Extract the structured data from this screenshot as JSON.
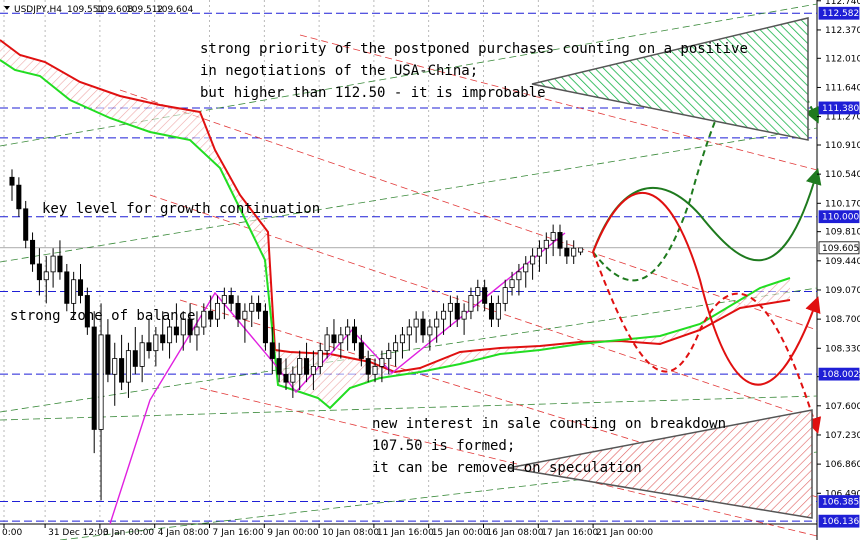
{
  "chart_data": {
    "type": "candlestick",
    "symbol": "USDJPY,H4",
    "ohlc_readout": [
      "109.551",
      "109.608",
      "109.512",
      "109.604"
    ],
    "ylim": [
      106.1,
      112.75
    ],
    "price_ticks": [
      112.74,
      112.37,
      112.01,
      111.64,
      111.27,
      110.91,
      110.54,
      110.17,
      109.81,
      109.44,
      109.07,
      108.7,
      108.33,
      107.97,
      107.6,
      107.23,
      106.86,
      106.49
    ],
    "price_tick_labels": [
      "112.740",
      "112.370",
      "112.010",
      "111.640",
      "111.270",
      "110.910",
      "110.540",
      "110.170",
      "109.810",
      "109.440",
      "109.070",
      "108.700",
      "108.330",
      "107.970",
      "107.600",
      "107.230",
      "106.860",
      "106.490"
    ],
    "time_labels": [
      {
        "label": "0:00",
        "bar": 0
      },
      {
        "label": "31 Dec 12:00",
        "bar": 6
      },
      {
        "label": "3 Jan 00:00",
        "bar": 14
      },
      {
        "label": "4 Jan 08:00",
        "bar": 22
      },
      {
        "label": "7 Jan 16:00",
        "bar": 30
      },
      {
        "label": "9 Jan 00:00",
        "bar": 38
      },
      {
        "label": "10 Jan 08:00",
        "bar": 46
      },
      {
        "label": "11 Jan 16:00",
        "bar": 54
      },
      {
        "label": "15 Jan 00:00",
        "bar": 62
      },
      {
        "label": "16 Jan 08:00",
        "bar": 70
      },
      {
        "label": "17 Jan 16:00",
        "bar": 78
      },
      {
        "label": "21 Jan 00:00",
        "bar": 86
      }
    ],
    "levels": [
      {
        "value": 112.582,
        "label": "112.582",
        "color": "#1f1fd6",
        "style": "dash"
      },
      {
        "value": 111.38,
        "label": "111.380",
        "color": "#1f1fd6",
        "style": "dash"
      },
      {
        "value": 111.0,
        "label": "",
        "color": "#1f1fd6",
        "style": "dash"
      },
      {
        "value": 110.0,
        "label": "110.000",
        "color": "#1f1fd6",
        "style": "dash"
      },
      {
        "value": 109.605,
        "label": "109.605",
        "color": "#7a7a7a",
        "style": "solid"
      },
      {
        "value": 109.05,
        "label": "",
        "color": "#1f1fd6",
        "style": "dash"
      },
      {
        "value": 108.002,
        "label": "108.002",
        "color": "#1f1fd6",
        "style": "dash"
      },
      {
        "value": 106.385,
        "label": "106.385",
        "color": "#1f1fd6",
        "style": "dash"
      },
      {
        "value": 106.136,
        "label": "106.136",
        "color": "#1f1fd6",
        "style": "dash"
      }
    ],
    "candles": [
      {
        "o": 110.5,
        "h": 110.6,
        "l": 110.2,
        "c": 110.4
      },
      {
        "o": 110.4,
        "h": 110.5,
        "l": 110.0,
        "c": 110.1
      },
      {
        "o": 110.1,
        "h": 110.2,
        "l": 109.6,
        "c": 109.7
      },
      {
        "o": 109.7,
        "h": 109.8,
        "l": 109.3,
        "c": 109.4
      },
      {
        "o": 109.4,
        "h": 109.6,
        "l": 109.0,
        "c": 109.2
      },
      {
        "o": 109.2,
        "h": 109.5,
        "l": 108.9,
        "c": 109.3
      },
      {
        "o": 109.3,
        "h": 109.6,
        "l": 109.1,
        "c": 109.5
      },
      {
        "o": 109.5,
        "h": 109.7,
        "l": 109.2,
        "c": 109.3
      },
      {
        "o": 109.3,
        "h": 109.4,
        "l": 108.8,
        "c": 108.9
      },
      {
        "o": 108.9,
        "h": 109.3,
        "l": 108.7,
        "c": 109.2
      },
      {
        "o": 109.2,
        "h": 109.4,
        "l": 108.9,
        "c": 109.0
      },
      {
        "o": 109.0,
        "h": 109.1,
        "l": 108.5,
        "c": 108.6
      },
      {
        "o": 108.6,
        "h": 108.8,
        "l": 107.0,
        "c": 107.3
      },
      {
        "o": 107.3,
        "h": 108.9,
        "l": 106.4,
        "c": 108.5
      },
      {
        "o": 108.5,
        "h": 108.7,
        "l": 107.9,
        "c": 108.0
      },
      {
        "o": 108.0,
        "h": 108.4,
        "l": 107.6,
        "c": 108.2
      },
      {
        "o": 108.2,
        "h": 108.5,
        "l": 107.8,
        "c": 107.9
      },
      {
        "o": 107.9,
        "h": 108.4,
        "l": 107.7,
        "c": 108.3
      },
      {
        "o": 108.3,
        "h": 108.6,
        "l": 108.0,
        "c": 108.1
      },
      {
        "o": 108.1,
        "h": 108.5,
        "l": 107.9,
        "c": 108.4
      },
      {
        "o": 108.4,
        "h": 108.7,
        "l": 108.2,
        "c": 108.3
      },
      {
        "o": 108.3,
        "h": 108.6,
        "l": 108.1,
        "c": 108.5
      },
      {
        "o": 108.5,
        "h": 108.8,
        "l": 108.3,
        "c": 108.4
      },
      {
        "o": 108.4,
        "h": 108.7,
        "l": 108.2,
        "c": 108.6
      },
      {
        "o": 108.6,
        "h": 108.9,
        "l": 108.4,
        "c": 108.5
      },
      {
        "o": 108.5,
        "h": 108.8,
        "l": 108.3,
        "c": 108.7
      },
      {
        "o": 108.7,
        "h": 108.9,
        "l": 108.4,
        "c": 108.5
      },
      {
        "o": 108.5,
        "h": 108.8,
        "l": 108.3,
        "c": 108.6
      },
      {
        "o": 108.6,
        "h": 108.9,
        "l": 108.5,
        "c": 108.8
      },
      {
        "o": 108.8,
        "h": 109.0,
        "l": 108.6,
        "c": 108.7
      },
      {
        "o": 108.7,
        "h": 109.0,
        "l": 108.6,
        "c": 108.9
      },
      {
        "o": 108.9,
        "h": 109.1,
        "l": 108.7,
        "c": 109.0
      },
      {
        "o": 109.0,
        "h": 109.1,
        "l": 108.8,
        "c": 108.9
      },
      {
        "o": 108.9,
        "h": 109.0,
        "l": 108.6,
        "c": 108.7
      },
      {
        "o": 108.7,
        "h": 108.9,
        "l": 108.4,
        "c": 108.8
      },
      {
        "o": 108.8,
        "h": 109.0,
        "l": 108.6,
        "c": 108.9
      },
      {
        "o": 108.9,
        "h": 109.0,
        "l": 108.7,
        "c": 108.8
      },
      {
        "o": 108.8,
        "h": 108.9,
        "l": 108.3,
        "c": 108.4
      },
      {
        "o": 108.4,
        "h": 108.6,
        "l": 108.0,
        "c": 108.2
      },
      {
        "o": 108.2,
        "h": 108.4,
        "l": 107.9,
        "c": 108.0
      },
      {
        "o": 108.0,
        "h": 108.2,
        "l": 107.8,
        "c": 107.9
      },
      {
        "o": 107.9,
        "h": 108.1,
        "l": 107.7,
        "c": 108.0
      },
      {
        "o": 108.0,
        "h": 108.3,
        "l": 107.8,
        "c": 108.2
      },
      {
        "o": 108.2,
        "h": 108.4,
        "l": 107.9,
        "c": 108.0
      },
      {
        "o": 108.0,
        "h": 108.3,
        "l": 107.8,
        "c": 108.1
      },
      {
        "o": 108.1,
        "h": 108.4,
        "l": 108.0,
        "c": 108.3
      },
      {
        "o": 108.3,
        "h": 108.6,
        "l": 108.2,
        "c": 108.5
      },
      {
        "o": 108.5,
        "h": 108.7,
        "l": 108.3,
        "c": 108.4
      },
      {
        "o": 108.4,
        "h": 108.6,
        "l": 108.2,
        "c": 108.5
      },
      {
        "o": 108.5,
        "h": 108.7,
        "l": 108.3,
        "c": 108.6
      },
      {
        "o": 108.6,
        "h": 108.7,
        "l": 108.3,
        "c": 108.4
      },
      {
        "o": 108.4,
        "h": 108.5,
        "l": 108.1,
        "c": 108.2
      },
      {
        "o": 108.2,
        "h": 108.3,
        "l": 107.9,
        "c": 108.0
      },
      {
        "o": 108.0,
        "h": 108.2,
        "l": 107.9,
        "c": 108.1
      },
      {
        "o": 108.1,
        "h": 108.3,
        "l": 107.9,
        "c": 108.2
      },
      {
        "o": 108.2,
        "h": 108.4,
        "l": 108.0,
        "c": 108.3
      },
      {
        "o": 108.3,
        "h": 108.5,
        "l": 108.1,
        "c": 108.4
      },
      {
        "o": 108.4,
        "h": 108.6,
        "l": 108.2,
        "c": 108.5
      },
      {
        "o": 108.5,
        "h": 108.7,
        "l": 108.3,
        "c": 108.6
      },
      {
        "o": 108.6,
        "h": 108.8,
        "l": 108.4,
        "c": 108.7
      },
      {
        "o": 108.7,
        "h": 108.8,
        "l": 108.4,
        "c": 108.5
      },
      {
        "o": 108.5,
        "h": 108.7,
        "l": 108.3,
        "c": 108.6
      },
      {
        "o": 108.6,
        "h": 108.8,
        "l": 108.4,
        "c": 108.7
      },
      {
        "o": 108.7,
        "h": 108.9,
        "l": 108.5,
        "c": 108.8
      },
      {
        "o": 108.8,
        "h": 109.0,
        "l": 108.6,
        "c": 108.9
      },
      {
        "o": 108.9,
        "h": 109.0,
        "l": 108.6,
        "c": 108.7
      },
      {
        "o": 108.7,
        "h": 108.9,
        "l": 108.5,
        "c": 108.8
      },
      {
        "o": 108.8,
        "h": 109.1,
        "l": 108.7,
        "c": 109.0
      },
      {
        "o": 109.0,
        "h": 109.2,
        "l": 108.8,
        "c": 109.1
      },
      {
        "o": 109.1,
        "h": 109.2,
        "l": 108.8,
        "c": 108.9
      },
      {
        "o": 108.9,
        "h": 109.0,
        "l": 108.6,
        "c": 108.7
      },
      {
        "o": 108.7,
        "h": 109.0,
        "l": 108.6,
        "c": 108.9
      },
      {
        "o": 108.9,
        "h": 109.2,
        "l": 108.8,
        "c": 109.1
      },
      {
        "o": 109.1,
        "h": 109.3,
        "l": 109.0,
        "c": 109.2
      },
      {
        "o": 109.2,
        "h": 109.4,
        "l": 109.0,
        "c": 109.3
      },
      {
        "o": 109.3,
        "h": 109.5,
        "l": 109.1,
        "c": 109.4
      },
      {
        "o": 109.4,
        "h": 109.6,
        "l": 109.2,
        "c": 109.5
      },
      {
        "o": 109.5,
        "h": 109.7,
        "l": 109.3,
        "c": 109.6
      },
      {
        "o": 109.6,
        "h": 109.8,
        "l": 109.4,
        "c": 109.7
      },
      {
        "o": 109.7,
        "h": 109.9,
        "l": 109.5,
        "c": 109.8
      },
      {
        "o": 109.8,
        "h": 109.9,
        "l": 109.5,
        "c": 109.6
      },
      {
        "o": 109.6,
        "h": 109.7,
        "l": 109.4,
        "c": 109.5
      },
      {
        "o": 109.5,
        "h": 109.7,
        "l": 109.4,
        "c": 109.6
      },
      {
        "o": 109.551,
        "h": 109.608,
        "l": 109.512,
        "c": 109.604
      }
    ],
    "annotations": [
      "strong priority of the postponed purchases counting on a positive",
      "in negotiations of the USA-China;",
      "but higher than 112.50 - it is improbable",
      "key level for growth continuation",
      "strong zone of balance",
      "new interest in sale counting on breakdown",
      "107.50 is formed;",
      "it can be removed on speculation"
    ]
  }
}
